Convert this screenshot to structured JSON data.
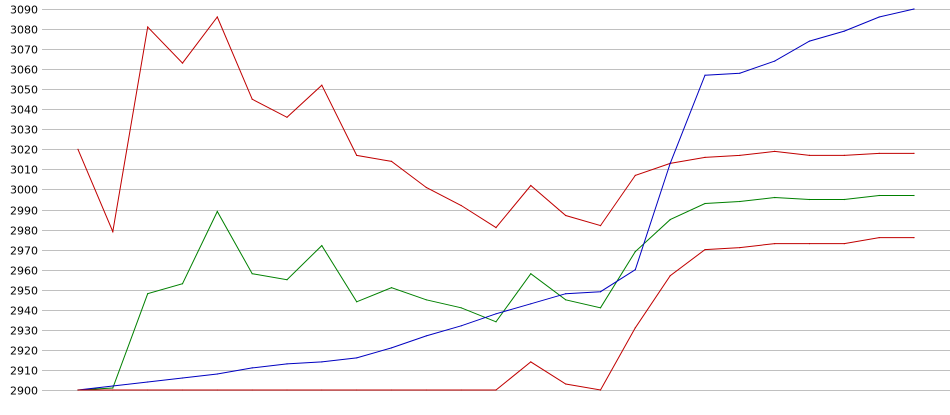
{
  "chart_data": {
    "type": "line",
    "title": "",
    "xlabel": "",
    "ylabel": "",
    "ylim": [
      2900,
      3090
    ],
    "yticks": [
      2900,
      2910,
      2920,
      2930,
      2940,
      2950,
      2960,
      2970,
      2980,
      2990,
      3000,
      3010,
      3020,
      3030,
      3040,
      3050,
      3060,
      3070,
      3080,
      3090
    ],
    "grid": true,
    "legend": "none",
    "x": [
      1,
      2,
      3,
      4,
      5,
      6,
      7,
      8,
      9,
      10,
      11,
      12,
      13,
      14,
      15,
      16,
      17,
      18,
      19,
      20,
      21,
      22,
      23,
      24,
      25
    ],
    "series": [
      {
        "color": "#c00000",
        "values": [
          3020,
          2979,
          3081,
          3063,
          3086,
          3045,
          3036,
          3052,
          3017,
          3014,
          3001,
          2992,
          2981,
          3002,
          2987,
          2982,
          3007,
          3013,
          3016,
          3017,
          3019,
          3017,
          3017,
          3018,
          3018
        ]
      },
      {
        "color": "#008000",
        "values": [
          2900,
          2901,
          2948,
          2953,
          2989,
          2958,
          2955,
          2972,
          2944,
          2951,
          2945,
          2941,
          2934,
          2958,
          2945,
          2941,
          2969,
          2985,
          2993,
          2994,
          2996,
          2995,
          2995,
          2997,
          2997
        ]
      },
      {
        "color": "#0000c0",
        "values": [
          2900,
          2902,
          2904,
          2906,
          2908,
          2911,
          2913,
          2914,
          2916,
          2921,
          2927,
          2932,
          2938,
          2943,
          2948,
          2949,
          2960,
          3013,
          3057,
          3058,
          3064,
          3074,
          3079,
          3086,
          3090
        ]
      },
      {
        "color": "#c00000",
        "values": [
          2900,
          2900,
          2900,
          2900,
          2900,
          2900,
          2900,
          2900,
          2900,
          2900,
          2900,
          2900,
          2900,
          2914,
          2903,
          2900,
          2931,
          2957,
          2970,
          2971,
          2973,
          2973,
          2973,
          2976,
          2976
        ]
      }
    ]
  }
}
